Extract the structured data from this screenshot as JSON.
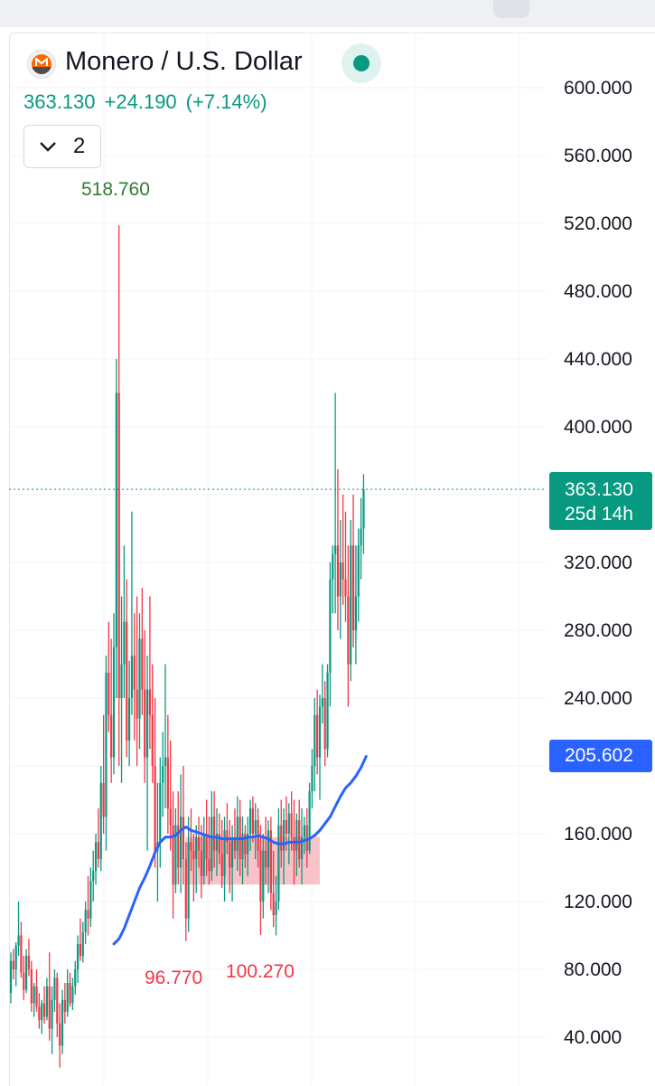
{
  "header": {
    "title": "Monero / U.S. Dollar",
    "price": "363.130",
    "change": "+24.190",
    "change_pct": "(+7.14%)",
    "collapse_count": "2",
    "icons": [
      "monero-logo-icon",
      "live-status-icon",
      "chevron-down-icon"
    ]
  },
  "price_tag": {
    "value": "363.130",
    "countdown": "25d 14h"
  },
  "ma_tag": {
    "value": "205.602"
  },
  "colors": {
    "up": "#089981",
    "down": "#f23645",
    "ma": "#2962ff",
    "text": "#131722",
    "box": "#f7b9be"
  },
  "chart_data": {
    "type": "candlestick",
    "title": "Monero / U.S. Dollar",
    "xlabel": "",
    "ylabel": "",
    "ylim": [
      25,
      640
    ],
    "y_ticks": [
      "600.000",
      "560.000",
      "520.000",
      "480.000",
      "440.000",
      "400.000",
      "320.000",
      "280.000",
      "240.000",
      "160.000",
      "120.000",
      "80.000",
      "40.000"
    ],
    "grid": true,
    "last_price": 363.13,
    "annotations": {
      "high": "518.760",
      "low_1": "96.770",
      "low_2": "100.270"
    },
    "extremes": {
      "high": 518.76,
      "low_1": 96.77,
      "low_2": 100.27
    },
    "range_box": {
      "from_index": 68,
      "to_index": 120,
      "low": 130,
      "high": 158
    },
    "ohlc": [
      [
        66,
        90,
        60,
        85
      ],
      [
        85,
        92,
        74,
        80
      ],
      [
        80,
        96,
        70,
        94
      ],
      [
        94,
        120,
        88,
        100
      ],
      [
        100,
        108,
        75,
        78
      ],
      [
        78,
        88,
        62,
        68
      ],
      [
        68,
        92,
        66,
        88
      ],
      [
        88,
        98,
        76,
        80
      ],
      [
        80,
        85,
        55,
        60
      ],
      [
        60,
        72,
        52,
        70
      ],
      [
        70,
        80,
        55,
        58
      ],
      [
        58,
        66,
        45,
        50
      ],
      [
        50,
        62,
        42,
        60
      ],
      [
        60,
        70,
        48,
        52
      ],
      [
        52,
        75,
        50,
        70
      ],
      [
        70,
        90,
        38,
        45
      ],
      [
        45,
        70,
        30,
        62
      ],
      [
        62,
        80,
        55,
        75
      ],
      [
        75,
        78,
        40,
        48
      ],
      [
        48,
        60,
        22,
        35
      ],
      [
        35,
        68,
        30,
        62
      ],
      [
        62,
        72,
        48,
        55
      ],
      [
        55,
        80,
        52,
        72
      ],
      [
        72,
        78,
        58,
        60
      ],
      [
        60,
        75,
        56,
        70
      ],
      [
        70,
        85,
        65,
        80
      ],
      [
        80,
        100,
        72,
        95
      ],
      [
        95,
        110,
        85,
        88
      ],
      [
        88,
        108,
        84,
        102
      ],
      [
        102,
        120,
        95,
        115
      ],
      [
        115,
        135,
        100,
        110
      ],
      [
        110,
        140,
        105,
        132
      ],
      [
        132,
        150,
        120,
        138
      ],
      [
        138,
        160,
        130,
        155
      ],
      [
        155,
        175,
        140,
        145
      ],
      [
        145,
        200,
        138,
        190
      ],
      [
        190,
        230,
        160,
        170
      ],
      [
        170,
        265,
        150,
        255
      ],
      [
        255,
        285,
        220,
        230
      ],
      [
        230,
        275,
        190,
        205
      ],
      [
        205,
        290,
        195,
        270
      ],
      [
        270,
        440,
        240,
        420
      ],
      [
        420,
        518.76,
        200,
        240
      ],
      [
        240,
        300,
        190,
        260
      ],
      [
        260,
        330,
        240,
        285
      ],
      [
        285,
        310,
        205,
        215
      ],
      [
        215,
        262,
        200,
        240
      ],
      [
        240,
        350,
        230,
        265
      ],
      [
        265,
        290,
        215,
        245
      ],
      [
        245,
        300,
        200,
        228
      ],
      [
        228,
        290,
        210,
        275
      ],
      [
        275,
        305,
        230,
        245
      ],
      [
        245,
        280,
        190,
        205
      ],
      [
        205,
        265,
        150,
        245
      ],
      [
        245,
        300,
        210,
        230
      ],
      [
        230,
        260,
        190,
        200
      ],
      [
        200,
        240,
        140,
        150
      ],
      [
        150,
        190,
        120,
        155
      ],
      [
        155,
        205,
        140,
        190
      ],
      [
        190,
        220,
        170,
        200
      ],
      [
        200,
        260,
        175,
        205
      ],
      [
        205,
        230,
        160,
        175
      ],
      [
        175,
        215,
        150,
        165
      ],
      [
        165,
        185,
        110,
        130
      ],
      [
        130,
        175,
        125,
        165
      ],
      [
        165,
        185,
        130,
        140
      ],
      [
        140,
        195,
        125,
        170
      ],
      [
        170,
        200,
        130,
        145
      ],
      [
        145,
        155,
        96.77,
        110
      ],
      [
        110,
        170,
        102,
        155
      ],
      [
        155,
        175,
        138,
        150
      ],
      [
        150,
        160,
        120,
        145
      ],
      [
        145,
        165,
        125,
        158
      ],
      [
        158,
        170,
        140,
        150
      ],
      [
        150,
        165,
        122,
        135
      ],
      [
        135,
        170,
        130,
        160
      ],
      [
        160,
        180,
        135,
        145
      ],
      [
        145,
        170,
        130,
        138
      ],
      [
        138,
        185,
        132,
        170
      ],
      [
        170,
        185,
        140,
        150
      ],
      [
        150,
        175,
        135,
        160
      ],
      [
        160,
        172,
        142,
        148
      ],
      [
        148,
        168,
        128,
        135
      ],
      [
        135,
        170,
        120,
        162
      ],
      [
        162,
        178,
        148,
        155
      ],
      [
        155,
        168,
        125,
        140
      ],
      [
        140,
        165,
        120,
        158
      ],
      [
        158,
        175,
        145,
        150
      ],
      [
        150,
        182,
        138,
        170
      ],
      [
        170,
        180,
        135,
        145
      ],
      [
        145,
        170,
        130,
        160
      ],
      [
        160,
        165,
        140,
        148
      ],
      [
        148,
        170,
        135,
        160
      ],
      [
        160,
        180,
        150,
        175
      ],
      [
        175,
        182,
        155,
        160
      ],
      [
        160,
        178,
        145,
        168
      ],
      [
        168,
        175,
        140,
        150
      ],
      [
        150,
        165,
        100.27,
        120
      ],
      [
        120,
        160,
        110,
        150
      ],
      [
        150,
        170,
        130,
        140
      ],
      [
        140,
        168,
        125,
        162
      ],
      [
        162,
        170,
        115,
        125
      ],
      [
        125,
        150,
        105,
        112
      ],
      [
        112,
        135,
        100,
        120
      ],
      [
        120,
        175,
        115,
        165
      ],
      [
        165,
        180,
        140,
        150
      ],
      [
        150,
        175,
        130,
        168
      ],
      [
        168,
        182,
        150,
        160
      ],
      [
        160,
        178,
        142,
        172
      ],
      [
        172,
        185,
        150,
        158
      ],
      [
        158,
        180,
        130,
        150
      ],
      [
        150,
        172,
        135,
        168
      ],
      [
        168,
        180,
        140,
        145
      ],
      [
        145,
        175,
        130,
        158
      ],
      [
        158,
        170,
        148,
        165
      ],
      [
        165,
        175,
        140,
        150
      ],
      [
        150,
        190,
        148,
        185
      ],
      [
        185,
        210,
        175,
        200
      ],
      [
        200,
        240,
        185,
        230
      ],
      [
        230,
        245,
        195,
        205
      ],
      [
        205,
        242,
        180,
        235
      ],
      [
        235,
        260,
        225,
        240
      ],
      [
        240,
        250,
        200,
        210
      ],
      [
        210,
        260,
        205,
        255
      ],
      [
        255,
        320,
        235,
        310
      ],
      [
        310,
        330,
        290,
        325
      ],
      [
        325,
        420,
        290,
        330
      ],
      [
        330,
        375,
        280,
        300
      ],
      [
        300,
        345,
        275,
        320
      ],
      [
        320,
        360,
        295,
        310
      ],
      [
        310,
        350,
        285,
        300
      ],
      [
        300,
        330,
        235,
        260
      ],
      [
        260,
        345,
        250,
        330
      ],
      [
        330,
        360,
        270,
        280
      ],
      [
        280,
        330,
        260,
        300
      ],
      [
        300,
        340,
        285,
        330
      ],
      [
        330,
        358,
        310,
        340
      ],
      [
        340,
        372,
        325,
        363.13
      ]
    ],
    "moving_average": [
      [
        40,
        95
      ],
      [
        42,
        98
      ],
      [
        44,
        104
      ],
      [
        46,
        112
      ],
      [
        48,
        120
      ],
      [
        50,
        128
      ],
      [
        52,
        134
      ],
      [
        54,
        141
      ],
      [
        56,
        149
      ],
      [
        58,
        155
      ],
      [
        60,
        158
      ],
      [
        62,
        158
      ],
      [
        64,
        159
      ],
      [
        66,
        162
      ],
      [
        68,
        164
      ],
      [
        70,
        162
      ],
      [
        72,
        161
      ],
      [
        74,
        160
      ],
      [
        76,
        159
      ],
      [
        78,
        158
      ],
      [
        80,
        158
      ],
      [
        82,
        157
      ],
      [
        84,
        157
      ],
      [
        86,
        157
      ],
      [
        88,
        157
      ],
      [
        90,
        157
      ],
      [
        92,
        158
      ],
      [
        94,
        158
      ],
      [
        96,
        159
      ],
      [
        98,
        158
      ],
      [
        100,
        157
      ],
      [
        102,
        155
      ],
      [
        104,
        154
      ],
      [
        106,
        154
      ],
      [
        108,
        155
      ],
      [
        110,
        155
      ],
      [
        112,
        155
      ],
      [
        114,
        156
      ],
      [
        116,
        157
      ],
      [
        118,
        159
      ],
      [
        120,
        162
      ],
      [
        122,
        166
      ],
      [
        124,
        170
      ],
      [
        126,
        176
      ],
      [
        128,
        182
      ],
      [
        130,
        187
      ],
      [
        132,
        190
      ],
      [
        134,
        194
      ],
      [
        136,
        199
      ],
      [
        138,
        205.602
      ]
    ]
  }
}
